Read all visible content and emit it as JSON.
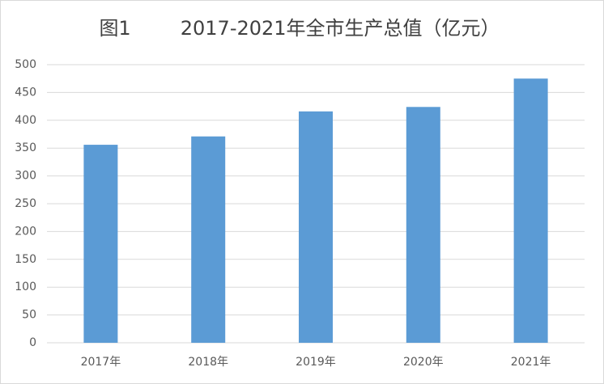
{
  "chart_data": {
    "type": "bar",
    "title": "图1        2017-2021年全市生产总值（亿元）",
    "categories": [
      "2017年",
      "2018年",
      "2019年",
      "2020年",
      "2021年"
    ],
    "values": [
      356,
      371,
      416,
      424,
      475
    ],
    "color": "#5b9bd5",
    "ylim": [
      0,
      500
    ],
    "yticks": [
      0,
      50,
      100,
      150,
      200,
      250,
      300,
      350,
      400,
      450,
      500
    ],
    "grid": true
  }
}
